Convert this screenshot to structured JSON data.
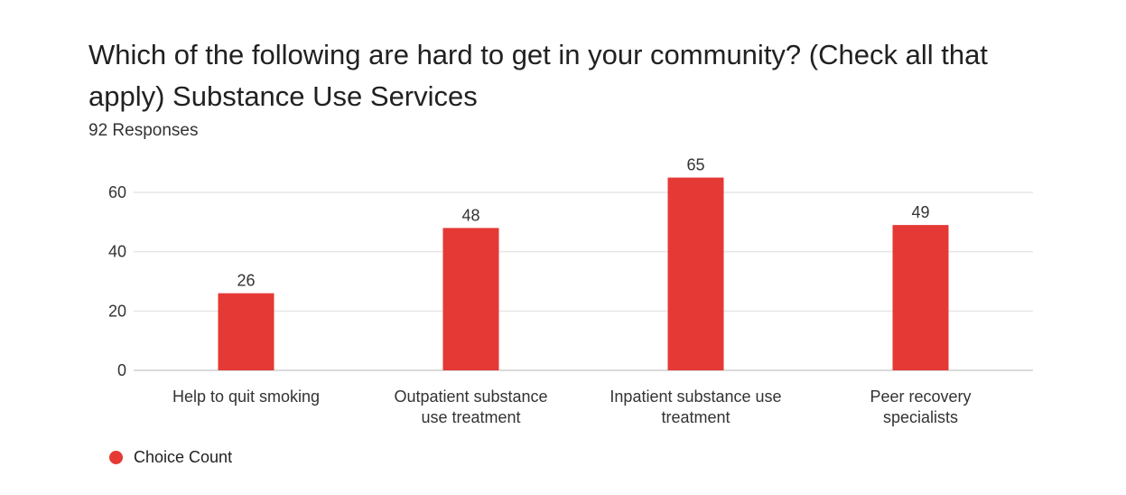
{
  "title": "Which of the following are hard to get in your community? (Check all that apply) Substance Use Services",
  "subtitle": "92 Responses",
  "colors": {
    "bar": "#e53935",
    "grid": "#e6e6e6",
    "text": "#333333"
  },
  "legend": {
    "label": "Choice Count",
    "icon": "circle-dot"
  },
  "chart_data": {
    "type": "bar",
    "title": "Which of the following are hard to get in your community? (Check all that apply) Substance Use Services",
    "subtitle": "92 Responses",
    "categories": [
      [
        "Help to quit smoking"
      ],
      [
        "Outpatient substance",
        "use treatment"
      ],
      [
        "Inpatient substance use",
        "treatment"
      ],
      [
        "Peer recovery",
        "specialists"
      ]
    ],
    "series": [
      {
        "name": "Choice Count",
        "values": [
          26,
          48,
          65,
          49
        ]
      }
    ],
    "ylim": [
      0,
      68
    ],
    "yticks": [
      0,
      20,
      40,
      60
    ],
    "grid": true,
    "legend_position": "bottom-left",
    "data_labels": true
  }
}
